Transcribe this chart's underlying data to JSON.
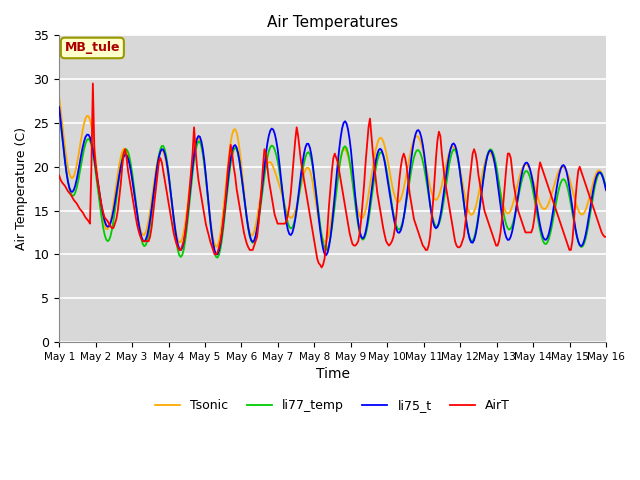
{
  "title": "Air Temperatures",
  "xlabel": "Time",
  "ylabel": "Air Temperature (C)",
  "annotation": "MB_tule",
  "ylim": [
    0,
    35
  ],
  "yticks": [
    0,
    5,
    10,
    15,
    20,
    25,
    30,
    35
  ],
  "xtick_labels": [
    "May 1",
    "May 2",
    "May 3",
    "May 4",
    "May 5",
    "May 6",
    "May 7",
    "May 8",
    "May 9",
    "May 10",
    "May 11",
    "May 12",
    "May 13",
    "May 14",
    "May 15",
    "May 16"
  ],
  "legend_labels": [
    "AirT",
    "li75_t",
    "li77_temp",
    "Tsonic"
  ],
  "line_colors": [
    "#ff0000",
    "#0000ff",
    "#00cc00",
    "#ffaa00"
  ],
  "plot_bg": "#d8d8d8",
  "fig_bg": "#ffffff",
  "grid_color": "#ffffff",
  "figsize": [
    6.4,
    4.8
  ],
  "dpi": 100,
  "airT_data": [
    19.0,
    18.5,
    18.2,
    18.0,
    17.8,
    17.5,
    17.2,
    17.0,
    16.8,
    16.5,
    16.2,
    16.0,
    15.8,
    15.5,
    15.2,
    15.0,
    14.8,
    14.5,
    14.2,
    14.0,
    13.8,
    13.5,
    20.0,
    29.5,
    22.0,
    20.0,
    18.5,
    17.5,
    16.5,
    15.5,
    14.8,
    14.2,
    14.0,
    13.8,
    13.5,
    13.2,
    13.0,
    13.0,
    13.5,
    14.0,
    15.0,
    16.5,
    18.0,
    20.0,
    21.5,
    22.0,
    21.0,
    19.5,
    18.5,
    17.5,
    16.5,
    15.5,
    14.5,
    13.5,
    12.8,
    12.2,
    11.8,
    11.5,
    11.5,
    11.5,
    11.5,
    11.5,
    12.0,
    13.0,
    14.5,
    16.0,
    17.5,
    19.0,
    20.5,
    21.0,
    20.5,
    19.5,
    18.5,
    17.5,
    16.5,
    15.5,
    14.5,
    13.5,
    12.5,
    11.8,
    11.2,
    10.8,
    10.5,
    10.5,
    11.0,
    11.5,
    12.5,
    14.0,
    15.5,
    17.5,
    19.5,
    21.5,
    24.5,
    22.0,
    20.0,
    18.5,
    17.5,
    16.5,
    15.5,
    14.5,
    13.5,
    12.8,
    12.2,
    11.5,
    11.0,
    10.5,
    10.0,
    10.0,
    10.2,
    10.8,
    11.5,
    12.5,
    14.0,
    15.5,
    17.5,
    19.5,
    21.0,
    22.5,
    21.5,
    20.0,
    19.0,
    17.5,
    16.5,
    15.5,
    14.5,
    13.5,
    12.5,
    11.8,
    11.2,
    10.8,
    10.5,
    10.5,
    10.5,
    11.0,
    11.5,
    12.0,
    13.5,
    15.5,
    17.5,
    20.0,
    22.0,
    21.5,
    20.0,
    18.5,
    17.5,
    16.5,
    15.5,
    14.5,
    14.0,
    13.5,
    13.5,
    13.5,
    13.5,
    13.5,
    13.5,
    13.8,
    14.5,
    15.5,
    17.0,
    19.0,
    21.0,
    23.0,
    24.5,
    23.5,
    22.0,
    20.5,
    19.5,
    18.5,
    17.5,
    16.5,
    15.5,
    14.5,
    13.5,
    12.5,
    11.5,
    10.5,
    9.5,
    9.0,
    8.8,
    8.5,
    8.8,
    9.5,
    11.0,
    13.0,
    15.5,
    17.5,
    19.5,
    21.0,
    21.5,
    21.0,
    20.5,
    19.5,
    18.5,
    17.5,
    16.5,
    15.5,
    14.5,
    13.5,
    12.5,
    11.8,
    11.2,
    11.0,
    11.0,
    11.2,
    11.5,
    12.5,
    14.0,
    16.0,
    18.0,
    20.5,
    22.5,
    24.5,
    25.5,
    23.5,
    21.5,
    20.0,
    18.5,
    17.0,
    16.0,
    15.0,
    14.0,
    13.0,
    12.2,
    11.5,
    11.2,
    11.0,
    11.2,
    11.5,
    12.0,
    13.0,
    14.5,
    16.5,
    18.5,
    20.0,
    21.0,
    21.5,
    21.0,
    20.0,
    18.5,
    17.0,
    16.0,
    15.0,
    14.0,
    13.5,
    13.0,
    12.5,
    12.0,
    11.5,
    11.0,
    10.8,
    10.5,
    10.5,
    11.0,
    12.0,
    14.0,
    16.0,
    18.5,
    21.0,
    23.0,
    24.0,
    23.5,
    21.5,
    20.0,
    18.5,
    17.5,
    16.5,
    15.5,
    14.5,
    13.5,
    12.5,
    11.5,
    11.0,
    10.8,
    10.8,
    11.0,
    11.5,
    12.0,
    13.5,
    15.0,
    17.0,
    18.5,
    20.0,
    21.5,
    22.0,
    21.5,
    20.5,
    19.0,
    18.0,
    17.0,
    16.0,
    15.0,
    14.5,
    14.0,
    13.5,
    13.0,
    12.5,
    12.0,
    11.5,
    11.0,
    11.0,
    11.5,
    12.5,
    14.0,
    16.0,
    18.0,
    20.0,
    21.5,
    21.5,
    21.0,
    19.5,
    18.0,
    17.0,
    16.0,
    15.0,
    14.5,
    14.0,
    13.5,
    13.0,
    12.5,
    12.5,
    12.5,
    12.5,
    12.5,
    13.0,
    14.0,
    15.5,
    17.5,
    19.5,
    20.5,
    20.0,
    19.5,
    19.0,
    18.5,
    18.0,
    17.5,
    17.0,
    16.5,
    16.0,
    15.5,
    15.0,
    14.5,
    14.0,
    13.5,
    13.0,
    12.5,
    12.0,
    11.5,
    11.0,
    10.5,
    10.5,
    11.5,
    13.5,
    16.0,
    18.0,
    19.5,
    20.0,
    19.5,
    19.0,
    18.5,
    18.0,
    17.5,
    17.0,
    16.5,
    16.0,
    15.5,
    15.0,
    14.5,
    14.0,
    13.5,
    13.0,
    12.5,
    12.2,
    12.0,
    12.0
  ],
  "li75_peaks": [
    29.8,
    22.2,
    21.2,
    22.2,
    23.8,
    22.2,
    24.8,
    22.2,
    25.8,
    21.2,
    24.8,
    22.2,
    21.8,
    20.2,
    20.2,
    19.2
  ],
  "li75_troughs": [
    18.8,
    13.8,
    11.8,
    10.8,
    9.8,
    10.3,
    13.8,
    9.0,
    11.8,
    11.8,
    13.8,
    11.3,
    11.3,
    12.3,
    10.3,
    12.3
  ],
  "li77_peaks": [
    28.5,
    22.0,
    22.0,
    22.5,
    23.0,
    22.0,
    22.5,
    21.5,
    22.5,
    21.5,
    22.0,
    22.0,
    22.0,
    19.0,
    18.5,
    19.5
  ],
  "li77_troughs": [
    19.5,
    11.5,
    11.5,
    9.8,
    9.5,
    9.8,
    14.5,
    10.0,
    11.5,
    12.0,
    14.5,
    10.5,
    13.5,
    11.5,
    10.5,
    11.5
  ],
  "tsonic_peaks": [
    31.0,
    24.5,
    21.5,
    22.0,
    23.5,
    24.5,
    19.5,
    20.0,
    22.5,
    23.5,
    23.5,
    22.0,
    21.5,
    20.0,
    20.0,
    19.5
  ],
  "tsonic_troughs": [
    21.5,
    13.0,
    12.5,
    11.5,
    11.0,
    10.5,
    16.0,
    10.5,
    13.5,
    15.5,
    17.0,
    14.5,
    14.5,
    15.0,
    15.5,
    12.5
  ]
}
